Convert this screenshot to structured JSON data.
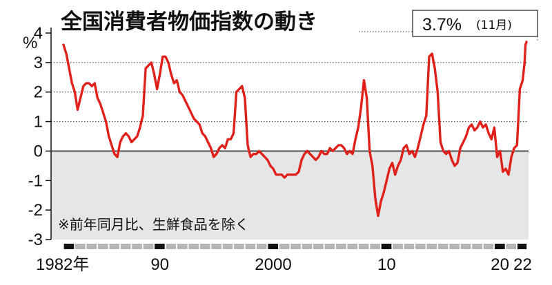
{
  "colors": {
    "line": "#e0201b",
    "negative_band": "#e6e6e6",
    "axis": "#111111",
    "grid": "#333333"
  },
  "chart_data": {
    "type": "line",
    "title": "全国消費者物価指数の動き",
    "unit_label": "%",
    "note": "※前年同月比、生鮮食品を除く",
    "callout": {
      "value": "3.7%",
      "period": "(11月)"
    },
    "ylim": [
      -3,
      4
    ],
    "y_ticks": [
      4,
      3,
      2,
      1,
      0,
      -1,
      -2,
      -3
    ],
    "y_tick_labels": [
      "4",
      "3",
      "2",
      "1",
      "0",
      "-1",
      "-2",
      "-3"
    ],
    "x_tick_labels": [
      {
        "year": 1982,
        "label": "1982年"
      },
      {
        "year": 1990,
        "label": "90"
      },
      {
        "year": 2000,
        "label": "2000"
      },
      {
        "year": 2010,
        "label": "10"
      },
      {
        "year": 2020,
        "label": "20"
      },
      {
        "year": 2022,
        "label": "22"
      }
    ],
    "xlim": [
      "1982-01",
      "2022-11"
    ],
    "grid": {
      "horizontal_dotted": true,
      "values": [
        1,
        2,
        3
      ]
    },
    "legend": "none",
    "series": [
      {
        "values": [
          [
            "1982-01",
            3.6
          ],
          [
            "1982-04",
            3.3
          ],
          [
            "1982-07",
            2.8
          ],
          [
            "1982-10",
            2.3
          ],
          [
            "1983-01",
            2.0
          ],
          [
            "1983-04",
            1.4
          ],
          [
            "1983-07",
            1.8
          ],
          [
            "1983-10",
            2.2
          ],
          [
            "1984-01",
            2.3
          ],
          [
            "1984-04",
            2.3
          ],
          [
            "1984-07",
            2.2
          ],
          [
            "1984-10",
            2.3
          ],
          [
            "1985-01",
            1.8
          ],
          [
            "1985-04",
            1.6
          ],
          [
            "1985-07",
            1.3
          ],
          [
            "1985-10",
            1.0
          ],
          [
            "1986-01",
            0.5
          ],
          [
            "1986-04",
            0.2
          ],
          [
            "1986-07",
            -0.1
          ],
          [
            "1986-10",
            -0.2
          ],
          [
            "1987-01",
            0.3
          ],
          [
            "1987-04",
            0.5
          ],
          [
            "1987-07",
            0.6
          ],
          [
            "1987-10",
            0.5
          ],
          [
            "1988-01",
            0.3
          ],
          [
            "1988-04",
            0.4
          ],
          [
            "1988-07",
            0.5
          ],
          [
            "1988-10",
            0.8
          ],
          [
            "1989-01",
            1.2
          ],
          [
            "1989-04",
            2.8
          ],
          [
            "1989-07",
            2.9
          ],
          [
            "1989-10",
            3.0
          ],
          [
            "1990-01",
            2.6
          ],
          [
            "1990-04",
            2.1
          ],
          [
            "1990-07",
            2.6
          ],
          [
            "1990-10",
            3.2
          ],
          [
            "1991-01",
            3.2
          ],
          [
            "1991-04",
            3.0
          ],
          [
            "1991-07",
            2.6
          ],
          [
            "1991-10",
            2.3
          ],
          [
            "1992-01",
            2.4
          ],
          [
            "1992-04",
            2.0
          ],
          [
            "1992-07",
            1.9
          ],
          [
            "1992-10",
            1.7
          ],
          [
            "1993-01",
            1.5
          ],
          [
            "1993-04",
            1.3
          ],
          [
            "1993-07",
            1.1
          ],
          [
            "1993-10",
            1.0
          ],
          [
            "1994-01",
            0.9
          ],
          [
            "1994-04",
            0.6
          ],
          [
            "1994-07",
            0.5
          ],
          [
            "1994-10",
            0.3
          ],
          [
            "1995-01",
            0.1
          ],
          [
            "1995-04",
            -0.2
          ],
          [
            "1995-07",
            -0.1
          ],
          [
            "1995-10",
            0.1
          ],
          [
            "1996-01",
            0.2
          ],
          [
            "1996-04",
            0.1
          ],
          [
            "1996-07",
            0.4
          ],
          [
            "1996-10",
            0.4
          ],
          [
            "1997-01",
            0.6
          ],
          [
            "1997-04",
            2.0
          ],
          [
            "1997-07",
            2.1
          ],
          [
            "1997-10",
            2.2
          ],
          [
            "1998-01",
            1.8
          ],
          [
            "1998-04",
            0.2
          ],
          [
            "1998-07",
            -0.2
          ],
          [
            "1998-10",
            -0.1
          ],
          [
            "1999-01",
            -0.1
          ],
          [
            "1999-04",
            0.0
          ],
          [
            "1999-07",
            -0.1
          ],
          [
            "1999-10",
            -0.2
          ],
          [
            "2000-01",
            -0.3
          ],
          [
            "2000-04",
            -0.5
          ],
          [
            "2000-07",
            -0.6
          ],
          [
            "2000-10",
            -0.8
          ],
          [
            "2001-01",
            -0.8
          ],
          [
            "2001-04",
            -0.8
          ],
          [
            "2001-07",
            -0.9
          ],
          [
            "2001-10",
            -0.8
          ],
          [
            "2002-01",
            -0.8
          ],
          [
            "2002-04",
            -0.8
          ],
          [
            "2002-07",
            -0.8
          ],
          [
            "2002-10",
            -0.7
          ],
          [
            "2003-01",
            -0.3
          ],
          [
            "2003-04",
            -0.1
          ],
          [
            "2003-07",
            0.0
          ],
          [
            "2003-10",
            -0.1
          ],
          [
            "2004-01",
            -0.2
          ],
          [
            "2004-04",
            -0.3
          ],
          [
            "2004-07",
            -0.2
          ],
          [
            "2004-10",
            0.0
          ],
          [
            "2005-01",
            -0.1
          ],
          [
            "2005-04",
            -0.1
          ],
          [
            "2005-07",
            0.1
          ],
          [
            "2005-10",
            0.0
          ],
          [
            "2006-01",
            0.1
          ],
          [
            "2006-04",
            0.2
          ],
          [
            "2006-07",
            0.2
          ],
          [
            "2006-10",
            0.1
          ],
          [
            "2007-01",
            -0.1
          ],
          [
            "2007-04",
            0.0
          ],
          [
            "2007-07",
            -0.1
          ],
          [
            "2007-10",
            0.4
          ],
          [
            "2008-01",
            0.8
          ],
          [
            "2008-04",
            1.5
          ],
          [
            "2008-07",
            2.4
          ],
          [
            "2008-10",
            1.8
          ],
          [
            "2009-01",
            0.0
          ],
          [
            "2009-04",
            -0.5
          ],
          [
            "2009-07",
            -1.6
          ],
          [
            "2009-10",
            -2.2
          ],
          [
            "2010-01",
            -1.7
          ],
          [
            "2010-04",
            -1.4
          ],
          [
            "2010-07",
            -1.0
          ],
          [
            "2010-10",
            -0.6
          ],
          [
            "2011-01",
            -0.4
          ],
          [
            "2011-04",
            -0.8
          ],
          [
            "2011-07",
            -0.5
          ],
          [
            "2011-10",
            -0.3
          ],
          [
            "2012-01",
            0.1
          ],
          [
            "2012-04",
            0.2
          ],
          [
            "2012-07",
            -0.1
          ],
          [
            "2012-10",
            0.0
          ],
          [
            "2013-01",
            -0.2
          ],
          [
            "2013-04",
            0.1
          ],
          [
            "2013-07",
            0.5
          ],
          [
            "2013-10",
            0.9
          ],
          [
            "2014-01",
            1.2
          ],
          [
            "2014-04",
            3.2
          ],
          [
            "2014-07",
            3.3
          ],
          [
            "2014-10",
            2.8
          ],
          [
            "2015-01",
            2.0
          ],
          [
            "2015-04",
            0.3
          ],
          [
            "2015-07",
            0.0
          ],
          [
            "2015-10",
            -0.1
          ],
          [
            "2016-01",
            0.0
          ],
          [
            "2016-04",
            -0.3
          ],
          [
            "2016-07",
            -0.5
          ],
          [
            "2016-10",
            -0.4
          ],
          [
            "2017-01",
            0.1
          ],
          [
            "2017-04",
            0.3
          ],
          [
            "2017-07",
            0.5
          ],
          [
            "2017-10",
            0.8
          ],
          [
            "2018-01",
            0.9
          ],
          [
            "2018-04",
            0.7
          ],
          [
            "2018-07",
            0.8
          ],
          [
            "2018-10",
            1.0
          ],
          [
            "2019-01",
            0.8
          ],
          [
            "2019-04",
            0.9
          ],
          [
            "2019-07",
            0.6
          ],
          [
            "2019-10",
            0.4
          ],
          [
            "2020-01",
            0.8
          ],
          [
            "2020-04",
            -0.2
          ],
          [
            "2020-07",
            0.0
          ],
          [
            "2020-10",
            -0.7
          ],
          [
            "2021-01",
            -0.6
          ],
          [
            "2021-04",
            -0.8
          ],
          [
            "2021-07",
            -0.2
          ],
          [
            "2021-10",
            0.1
          ],
          [
            "2022-01",
            0.2
          ],
          [
            "2022-04",
            2.1
          ],
          [
            "2022-07",
            2.4
          ],
          [
            "2022-09",
            3.0
          ],
          [
            "2022-10",
            3.6
          ],
          [
            "2022-11",
            3.7
          ]
        ]
      }
    ]
  }
}
